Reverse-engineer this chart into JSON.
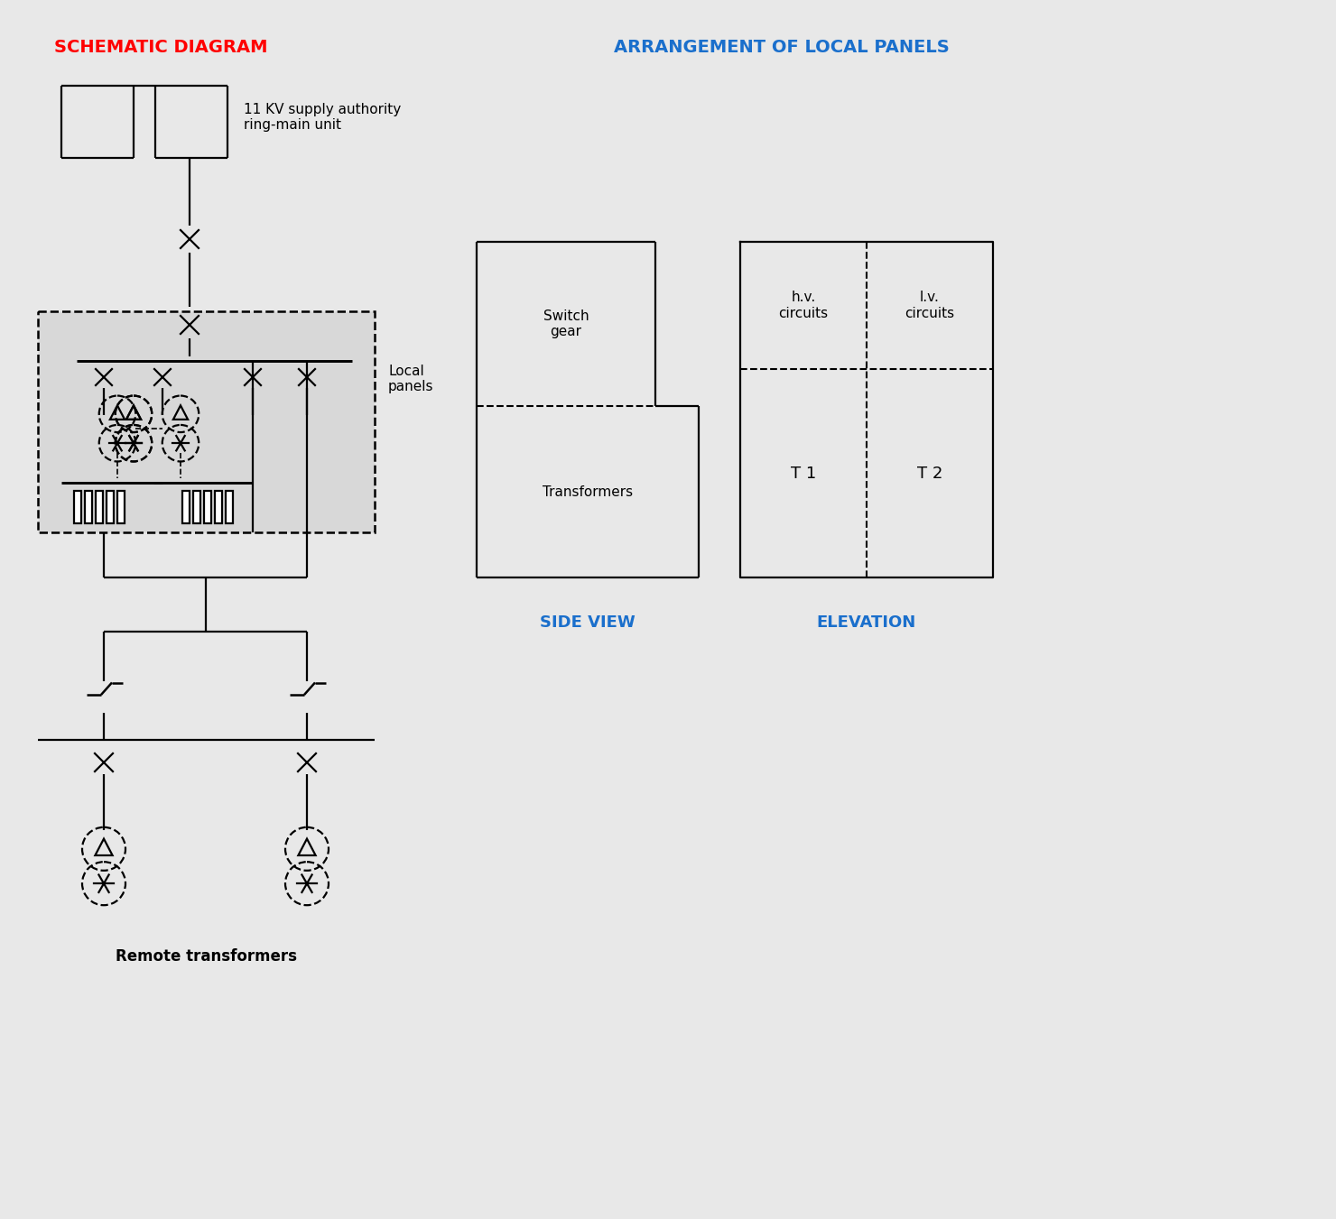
{
  "bg_color": "#e8e8e8",
  "schematic_label": "SCHEMATIC DIAGRAM",
  "arrangement_label": "ARRANGEMENT OF LOCAL PANELS",
  "side_view_label": "SIDE VIEW",
  "elevation_label": "ELEVATION",
  "supply_text": "11 KV supply authority\nring-main unit",
  "local_panels_text": "Local\npanels",
  "remote_transformers_text": "Remote transformers",
  "switch_gear_text": "Switch\ngear",
  "transformers_text": "Transformers",
  "hv_circuits_text": "h.v.\ncircuits",
  "lv_circuits_text": "l.v.\ncircuits",
  "t1_text": "T 1",
  "t2_text": "T 2",
  "lw": 1.6,
  "fs": 10,
  "fs_title": 13,
  "fs_label": 11
}
